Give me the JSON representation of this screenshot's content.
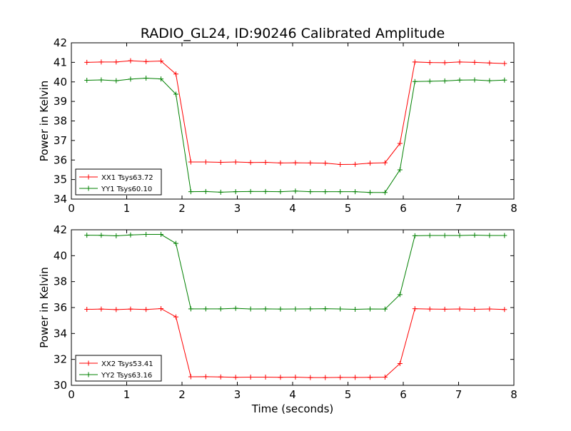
{
  "title": "RADIO_GL24, ID:90246 Calibrated Amplitude",
  "colors": {
    "xx": "#ff0000",
    "yy": "#008000"
  },
  "chart_data": [
    {
      "type": "line",
      "title": "RADIO_GL24, ID:90246 Calibrated Amplitude",
      "xlabel": "",
      "ylabel": "Power in Kelvin",
      "xlim": [
        0,
        8
      ],
      "ylim": [
        34,
        42
      ],
      "x_ticks": [
        "0",
        "1",
        "2",
        "3",
        "4",
        "5",
        "6",
        "7",
        "8"
      ],
      "y_ticks": [
        "34",
        "35",
        "36",
        "37",
        "38",
        "39",
        "40",
        "41",
        "42"
      ],
      "grid": false,
      "legend": "lower-left",
      "x": [
        0.28,
        0.54,
        0.81,
        1.07,
        1.35,
        1.62,
        1.89,
        2.16,
        2.43,
        2.7,
        2.97,
        3.24,
        3.51,
        3.78,
        4.05,
        4.32,
        4.59,
        4.86,
        5.13,
        5.4,
        5.67,
        5.94,
        6.21,
        6.48,
        6.75,
        7.02,
        7.29,
        7.56,
        7.83
      ],
      "series": [
        {
          "name": "XX1 Tsys63.72",
          "color": "#ff0000",
          "values": [
            41.0,
            41.02,
            41.02,
            41.08,
            41.04,
            41.07,
            40.4,
            35.9,
            35.9,
            35.88,
            35.9,
            35.87,
            35.88,
            35.85,
            35.86,
            35.85,
            35.84,
            35.77,
            35.78,
            35.84,
            35.86,
            36.85,
            41.02,
            40.99,
            40.98,
            41.02,
            41.0,
            40.97,
            40.94
          ]
        },
        {
          "name": "YY1 Tsys60.10",
          "color": "#008000",
          "values": [
            40.08,
            40.1,
            40.06,
            40.14,
            40.19,
            40.15,
            39.37,
            34.38,
            34.39,
            34.35,
            34.38,
            34.39,
            34.39,
            34.38,
            34.41,
            34.38,
            34.38,
            34.38,
            34.38,
            34.34,
            34.34,
            35.5,
            40.02,
            40.03,
            40.05,
            40.09,
            40.1,
            40.06,
            40.09
          ]
        }
      ]
    },
    {
      "type": "line",
      "title": "",
      "xlabel": "Time (seconds)",
      "ylabel": "Power in Kelvin",
      "xlim": [
        0,
        8
      ],
      "ylim": [
        30,
        42
      ],
      "x_ticks": [
        "0",
        "1",
        "2",
        "3",
        "4",
        "5",
        "6",
        "7",
        "8"
      ],
      "y_ticks": [
        "30",
        "32",
        "34",
        "36",
        "38",
        "40",
        "42"
      ],
      "grid": false,
      "legend": "lower-left",
      "x": [
        0.28,
        0.54,
        0.81,
        1.07,
        1.35,
        1.62,
        1.89,
        2.16,
        2.43,
        2.7,
        2.97,
        3.24,
        3.51,
        3.78,
        4.05,
        4.32,
        4.59,
        4.86,
        5.13,
        5.4,
        5.67,
        5.94,
        6.21,
        6.48,
        6.75,
        7.02,
        7.29,
        7.56,
        7.83
      ],
      "series": [
        {
          "name": "XX2 Tsys53.41",
          "color": "#ff0000",
          "values": [
            35.86,
            35.88,
            35.84,
            35.88,
            35.85,
            35.92,
            35.28,
            30.66,
            30.67,
            30.65,
            30.62,
            30.63,
            30.63,
            30.62,
            30.63,
            30.6,
            30.6,
            30.61,
            30.61,
            30.62,
            30.63,
            31.68,
            35.91,
            35.88,
            35.87,
            35.89,
            35.86,
            35.89,
            35.85
          ]
        },
        {
          "name": "YY2 Tsys63.16",
          "color": "#008000",
          "values": [
            41.58,
            41.57,
            41.53,
            41.6,
            41.64,
            41.64,
            40.95,
            35.9,
            35.9,
            35.9,
            35.94,
            35.89,
            35.9,
            35.88,
            35.89,
            35.9,
            35.91,
            35.89,
            35.86,
            35.89,
            35.88,
            37.0,
            41.54,
            41.56,
            41.56,
            41.56,
            41.59,
            41.56,
            41.56
          ]
        }
      ]
    }
  ]
}
